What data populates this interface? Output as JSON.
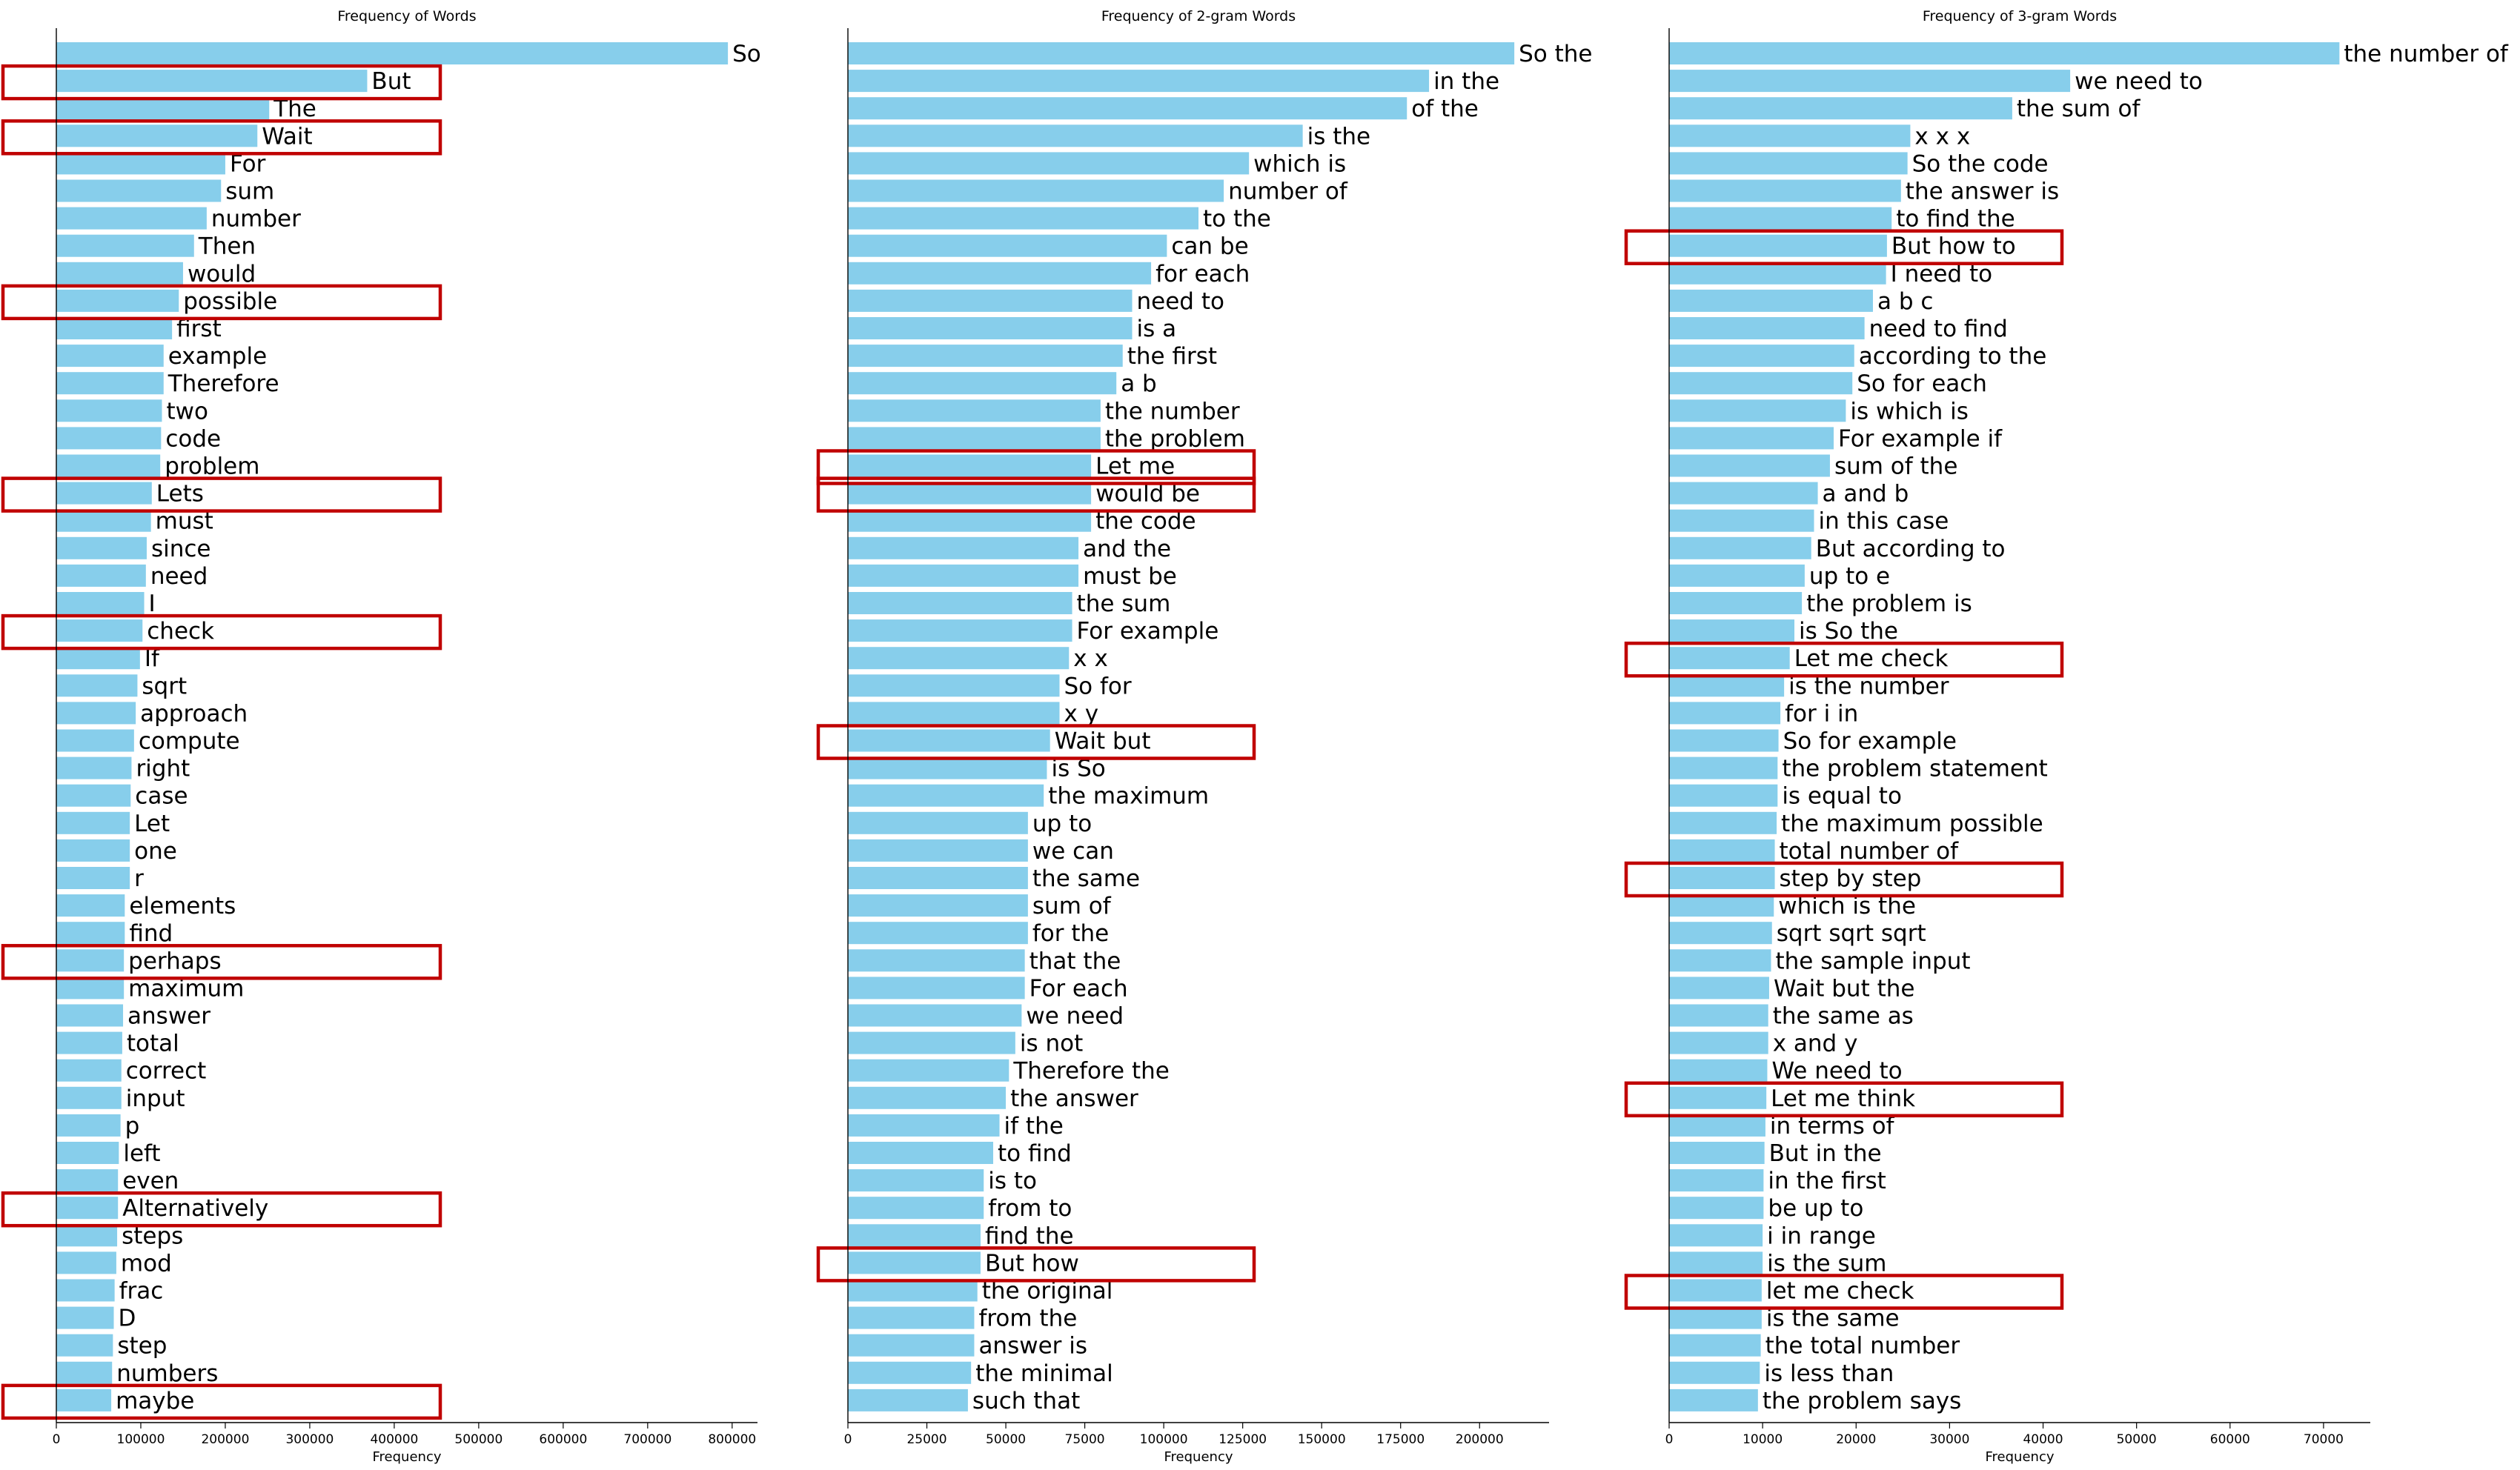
{
  "chart_data": [
    {
      "type": "bar",
      "orientation": "horizontal",
      "title": "Frequency of Words",
      "xlabel": "Frequency",
      "ylabel": "",
      "xlim": [
        0,
        830000
      ],
      "xticks": [
        0,
        100000,
        200000,
        300000,
        400000,
        500000,
        600000,
        700000,
        800000
      ],
      "grid": false,
      "color": "#87ceeb",
      "highlight_color": "#c00000",
      "categories": [
        "So",
        "But",
        "The",
        "Wait",
        "For",
        "sum",
        "number",
        "Then",
        "would",
        "possible",
        "first",
        "example",
        "Therefore",
        "two",
        "code",
        "problem",
        "Lets",
        "must",
        "since",
        "need",
        "I",
        "check",
        "If",
        "sqrt",
        "approach",
        "compute",
        "right",
        "case",
        "Let",
        "one",
        "r",
        "elements",
        "find",
        "perhaps",
        "maximum",
        "answer",
        "total",
        "correct",
        "input",
        "p",
        "left",
        "even",
        "Alternatively",
        "steps",
        "mod",
        "frac",
        "D",
        "step",
        "numbers",
        "maybe"
      ],
      "values": [
        795000,
        368000,
        252000,
        238000,
        200000,
        195000,
        178000,
        163000,
        150000,
        145000,
        137000,
        127000,
        127000,
        125000,
        124000,
        123000,
        113000,
        112000,
        107000,
        106000,
        104000,
        102000,
        99000,
        96000,
        94000,
        92000,
        89000,
        88000,
        87000,
        87000,
        87000,
        81000,
        81000,
        80000,
        80000,
        79000,
        78000,
        77000,
        77000,
        76000,
        74000,
        73000,
        73000,
        72000,
        71000,
        69000,
        68000,
        67000,
        66000,
        65000
      ],
      "highlighted": [
        "But",
        "Wait",
        "possible",
        "Lets",
        "check",
        "perhaps",
        "Alternatively",
        "maybe"
      ]
    },
    {
      "type": "bar",
      "orientation": "horizontal",
      "title": "Frequency of 2-gram Words",
      "xlabel": "Frequency",
      "ylabel": "",
      "xlim": [
        0,
        222000
      ],
      "xticks": [
        0,
        25000,
        50000,
        75000,
        100000,
        125000,
        150000,
        175000,
        200000
      ],
      "grid": false,
      "color": "#87ceeb",
      "highlight_color": "#c00000",
      "categories": [
        "So the",
        "in the",
        "of the",
        "is the",
        "which is",
        "number of",
        "to the",
        "can be",
        "for each",
        "need to",
        "is a",
        "the first",
        "a b",
        "the number",
        "the problem",
        "Let me",
        "would be",
        "the code",
        "and the",
        "must be",
        "the sum",
        "For example",
        "x x",
        "So for",
        "x y",
        "Wait but",
        "is So",
        "the maximum",
        "up to",
        "we can",
        "the same",
        "sum of",
        "for the",
        "that the",
        "For each",
        "we need",
        "is not",
        "Therefore the",
        "the answer",
        "if the",
        "to find",
        "is to",
        "from to",
        "find the",
        "But how",
        "the original",
        "from the",
        "answer is",
        "the minimal",
        "such that"
      ],
      "values": [
        211000,
        184000,
        177000,
        144000,
        127000,
        119000,
        111000,
        101000,
        96000,
        90000,
        90000,
        87000,
        85000,
        80000,
        80000,
        77000,
        77000,
        77000,
        73000,
        73000,
        71000,
        71000,
        70000,
        67000,
        67000,
        64000,
        63000,
        62000,
        57000,
        57000,
        57000,
        57000,
        57000,
        56000,
        56000,
        55000,
        53000,
        51000,
        50000,
        48000,
        46000,
        43000,
        43000,
        42000,
        42000,
        41000,
        40000,
        40000,
        39000,
        38000
      ],
      "highlighted": [
        "Let me",
        "would be",
        "Wait but",
        "But how"
      ]
    },
    {
      "type": "bar",
      "orientation": "horizontal",
      "title": "Frequency of 3-gram Words",
      "xlabel": "Frequency",
      "ylabel": "",
      "xlim": [
        0,
        75000
      ],
      "xticks": [
        0,
        10000,
        20000,
        30000,
        40000,
        50000,
        60000,
        70000
      ],
      "grid": false,
      "color": "#87ceeb",
      "highlight_color": "#c00000",
      "categories": [
        "the number of",
        "we need to",
        "the sum of",
        "x x x",
        "So the code",
        "the answer is",
        "to find the",
        "But how to",
        "I need to",
        "a b c",
        "need to find",
        "according to the",
        "So for each",
        "is which is",
        "For example if",
        "sum of the",
        "a and b",
        "in this case",
        "But according to",
        "up to e",
        "the problem is",
        "is So the",
        "Let me check",
        "is the number",
        "for i in",
        "So for example",
        "the problem statement",
        "is equal to",
        "the maximum possible",
        "total number of",
        "step by step",
        "which is the",
        "sqrt sqrt sqrt",
        "the sample input",
        "Wait but the",
        "the same as",
        "x and y",
        "We need to",
        "Let me think",
        "in terms of",
        "But in the",
        "in the first",
        "be up to",
        "i in range",
        "is the sum",
        "let me check",
        "is the same",
        "the total number",
        "is less than",
        "the problem says"
      ],
      "values": [
        71700,
        42900,
        36700,
        25800,
        25500,
        24800,
        23800,
        23300,
        23200,
        21800,
        20900,
        19800,
        19600,
        18900,
        17600,
        17200,
        15900,
        15500,
        15200,
        14500,
        14200,
        13400,
        12900,
        12300,
        11900,
        11700,
        11600,
        11600,
        11500,
        11300,
        11300,
        11200,
        11000,
        10900,
        10700,
        10600,
        10600,
        10500,
        10400,
        10300,
        10200,
        10100,
        10100,
        10000,
        10000,
        9900,
        9900,
        9800,
        9700,
        9500
      ],
      "highlighted": [
        "But how to",
        "Let me check",
        "step by step",
        "Let me think",
        "let me check"
      ]
    }
  ]
}
